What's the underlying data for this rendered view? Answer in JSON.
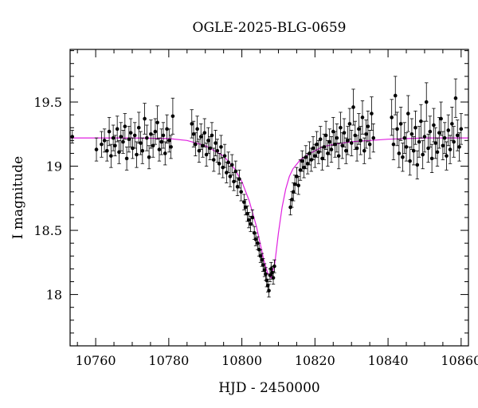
{
  "chart_data": {
    "type": "scatter",
    "title": "OGLE-2025-BLG-0659",
    "xlabel": "HJD - 2450000",
    "ylabel": "I magnitude",
    "xlim": [
      10753,
      10862
    ],
    "ylim": [
      19.91,
      17.6
    ],
    "y_inverted": true,
    "grid": false,
    "legend": "none",
    "xticks": [
      10760,
      10780,
      10800,
      10820,
      10840,
      10860
    ],
    "yticks": [
      18,
      18.5,
      19,
      19.5
    ],
    "colors": {
      "points": "#000000",
      "model": "#e020e0",
      "frame": "#000000"
    },
    "model": {
      "name": "",
      "x": [
        10753,
        10760,
        10770,
        10780,
        10785,
        10790,
        10795,
        10798,
        10800,
        10802,
        10804,
        10805,
        10806,
        10807,
        10808,
        10809,
        10810,
        10811,
        10812,
        10813,
        10814,
        10816,
        10818,
        10820,
        10822,
        10825,
        10830,
        10835,
        10840,
        10850,
        10862
      ],
      "y": [
        19.22,
        19.22,
        19.22,
        19.215,
        19.2,
        19.16,
        19.08,
        18.98,
        18.88,
        18.73,
        18.53,
        18.4,
        18.27,
        18.17,
        18.13,
        18.24,
        18.48,
        18.68,
        18.82,
        18.92,
        18.98,
        19.05,
        19.09,
        19.12,
        19.15,
        19.17,
        19.19,
        19.2,
        19.21,
        19.22,
        19.22
      ]
    },
    "series": [
      {
        "name": "",
        "points": [
          [
            10753.6,
            19.23,
            0.05
          ],
          [
            10760.2,
            19.13,
            0.09
          ],
          [
            10761.6,
            19.17,
            0.1
          ],
          [
            10762.4,
            19.2,
            0.09
          ],
          [
            10763.1,
            19.12,
            0.08
          ],
          [
            10763.7,
            19.27,
            0.11
          ],
          [
            10764.2,
            19.08,
            0.09
          ],
          [
            10764.8,
            19.22,
            0.1
          ],
          [
            10765.3,
            19.16,
            0.08
          ],
          [
            10765.9,
            19.29,
            0.1
          ],
          [
            10766.4,
            19.11,
            0.09
          ],
          [
            10766.9,
            19.23,
            0.11
          ],
          [
            10767.5,
            19.19,
            0.09
          ],
          [
            10768.0,
            19.31,
            0.1
          ],
          [
            10768.5,
            19.06,
            0.09
          ],
          [
            10769.1,
            19.21,
            0.1
          ],
          [
            10769.6,
            19.26,
            0.11
          ],
          [
            10770.1,
            19.14,
            0.08
          ],
          [
            10770.7,
            19.24,
            0.1
          ],
          [
            10771.2,
            19.09,
            0.1
          ],
          [
            10771.8,
            19.3,
            0.12
          ],
          [
            10772.3,
            19.18,
            0.09
          ],
          [
            10772.8,
            19.12,
            0.1
          ],
          [
            10773.4,
            19.37,
            0.12
          ],
          [
            10774.0,
            19.22,
            0.1
          ],
          [
            10774.6,
            19.07,
            0.09
          ],
          [
            10775.1,
            19.25,
            0.11
          ],
          [
            10775.7,
            19.16,
            0.09
          ],
          [
            10776.3,
            19.27,
            0.1
          ],
          [
            10776.9,
            19.34,
            0.13
          ],
          [
            10777.4,
            19.13,
            0.09
          ],
          [
            10778.0,
            19.19,
            0.1
          ],
          [
            10778.5,
            19.24,
            0.1
          ],
          [
            10779.0,
            19.1,
            0.09
          ],
          [
            10779.5,
            19.29,
            0.11
          ],
          [
            10780.1,
            19.2,
            0.09
          ],
          [
            10780.6,
            19.15,
            0.09
          ],
          [
            10781.1,
            19.39,
            0.14
          ],
          [
            10786.3,
            19.33,
            0.11
          ],
          [
            10786.8,
            19.25,
            0.1
          ],
          [
            10787.3,
            19.17,
            0.09
          ],
          [
            10787.8,
            19.29,
            0.1
          ],
          [
            10788.3,
            19.12,
            0.09
          ],
          [
            10788.8,
            19.23,
            0.1
          ],
          [
            10789.3,
            19.16,
            0.09
          ],
          [
            10789.8,
            19.26,
            0.11
          ],
          [
            10790.3,
            19.09,
            0.09
          ],
          [
            10790.8,
            19.2,
            0.1
          ],
          [
            10791.3,
            19.14,
            0.09
          ],
          [
            10791.8,
            19.24,
            0.1
          ],
          [
            10792.3,
            19.05,
            0.09
          ],
          [
            10792.8,
            19.18,
            0.1
          ],
          [
            10793.3,
            19.12,
            0.09
          ],
          [
            10793.8,
            19.02,
            0.08
          ],
          [
            10794.3,
            19.15,
            0.09
          ],
          [
            10794.8,
            18.99,
            0.08
          ],
          [
            10795.3,
            19.08,
            0.09
          ],
          [
            10795.8,
            18.95,
            0.08
          ],
          [
            10796.3,
            19.03,
            0.08
          ],
          [
            10796.8,
            18.92,
            0.08
          ],
          [
            10797.3,
            19.01,
            0.08
          ],
          [
            10797.8,
            18.88,
            0.07
          ],
          [
            10798.3,
            18.96,
            0.08
          ],
          [
            10798.8,
            18.84,
            0.07
          ],
          [
            10799.3,
            18.9,
            0.07
          ],
          [
            10799.8,
            18.8,
            0.07
          ],
          [
            10800.6,
            18.72,
            0.06
          ],
          [
            10801.0,
            18.68,
            0.06
          ],
          [
            10801.5,
            18.63,
            0.06
          ],
          [
            10801.9,
            18.58,
            0.06
          ],
          [
            10802.4,
            18.55,
            0.06
          ],
          [
            10802.9,
            18.6,
            0.06
          ],
          [
            10803.4,
            18.48,
            0.05
          ],
          [
            10803.8,
            18.43,
            0.05
          ],
          [
            10804.3,
            18.4,
            0.05
          ],
          [
            10804.7,
            18.35,
            0.05
          ],
          [
            10805.1,
            18.3,
            0.05
          ],
          [
            10805.5,
            18.27,
            0.05
          ],
          [
            10805.8,
            18.23,
            0.05
          ],
          [
            10806.2,
            18.19,
            0.05
          ],
          [
            10806.5,
            18.16,
            0.05
          ],
          [
            10806.8,
            18.11,
            0.05
          ],
          [
            10807.1,
            18.07,
            0.05
          ],
          [
            10807.4,
            18.03,
            0.05
          ],
          [
            10807.7,
            18.15,
            0.05
          ],
          [
            10808.0,
            18.2,
            0.05
          ],
          [
            10808.3,
            18.17,
            0.05
          ],
          [
            10808.6,
            18.13,
            0.05
          ],
          [
            10808.9,
            18.22,
            0.05
          ],
          [
            10813.3,
            18.68,
            0.06
          ],
          [
            10813.7,
            18.74,
            0.06
          ],
          [
            10814.1,
            18.8,
            0.07
          ],
          [
            10814.5,
            18.86,
            0.07
          ],
          [
            10815.0,
            18.92,
            0.07
          ],
          [
            10815.5,
            18.85,
            0.07
          ],
          [
            10816.0,
            18.97,
            0.08
          ],
          [
            10816.5,
            19.04,
            0.08
          ],
          [
            10817.0,
            18.99,
            0.08
          ],
          [
            10817.5,
            19.07,
            0.09
          ],
          [
            10818.0,
            19.02,
            0.08
          ],
          [
            10818.5,
            19.1,
            0.09
          ],
          [
            10819.0,
            19.05,
            0.09
          ],
          [
            10819.5,
            19.14,
            0.09
          ],
          [
            10820.0,
            19.08,
            0.09
          ],
          [
            10820.5,
            19.17,
            0.1
          ],
          [
            10821.0,
            19.11,
            0.09
          ],
          [
            10821.5,
            19.21,
            0.1
          ],
          [
            10822.0,
            19.06,
            0.09
          ],
          [
            10822.5,
            19.15,
            0.1
          ],
          [
            10823.0,
            19.24,
            0.11
          ],
          [
            10823.5,
            19.1,
            0.1
          ],
          [
            10824.0,
            19.19,
            0.1
          ],
          [
            10824.5,
            19.13,
            0.1
          ],
          [
            10825.0,
            19.27,
            0.11
          ],
          [
            10825.5,
            19.17,
            0.1
          ],
          [
            10826.0,
            19.22,
            0.11
          ],
          [
            10826.5,
            19.08,
            0.1
          ],
          [
            10827.0,
            19.3,
            0.12
          ],
          [
            10827.5,
            19.16,
            0.1
          ],
          [
            10828.0,
            19.26,
            0.11
          ],
          [
            10828.5,
            19.12,
            0.1
          ],
          [
            10829.0,
            19.2,
            0.11
          ],
          [
            10829.5,
            19.33,
            0.12
          ],
          [
            10830.0,
            19.18,
            0.1
          ],
          [
            10830.5,
            19.46,
            0.14
          ],
          [
            10831.0,
            19.24,
            0.11
          ],
          [
            10831.5,
            19.14,
            0.1
          ],
          [
            10832.0,
            19.29,
            0.12
          ],
          [
            10832.5,
            19.2,
            0.11
          ],
          [
            10833.0,
            19.38,
            0.13
          ],
          [
            10833.5,
            19.12,
            0.1
          ],
          [
            10834.0,
            19.25,
            0.11
          ],
          [
            10834.5,
            19.31,
            0.12
          ],
          [
            10835.0,
            19.17,
            0.11
          ],
          [
            10835.5,
            19.41,
            0.13
          ],
          [
            10836.0,
            19.22,
            0.11
          ],
          [
            10841.0,
            19.38,
            0.14
          ],
          [
            10841.5,
            19.17,
            0.12
          ],
          [
            10842.0,
            19.55,
            0.15
          ],
          [
            10842.5,
            19.29,
            0.13
          ],
          [
            10843.0,
            19.1,
            0.11
          ],
          [
            10843.5,
            19.33,
            0.13
          ],
          [
            10844.0,
            19.07,
            0.11
          ],
          [
            10844.5,
            19.22,
            0.12
          ],
          [
            10845.0,
            19.15,
            0.11
          ],
          [
            10845.5,
            19.41,
            0.14
          ],
          [
            10846.0,
            19.04,
            0.11
          ],
          [
            10846.5,
            19.25,
            0.12
          ],
          [
            10847.0,
            19.12,
            0.11
          ],
          [
            10847.5,
            19.3,
            0.13
          ],
          [
            10848.0,
            19.01,
            0.11
          ],
          [
            10848.5,
            19.19,
            0.12
          ],
          [
            10849.0,
            19.35,
            0.13
          ],
          [
            10849.5,
            19.09,
            0.11
          ],
          [
            10850.0,
            19.23,
            0.12
          ],
          [
            10850.5,
            19.5,
            0.15
          ],
          [
            10851.0,
            19.14,
            0.11
          ],
          [
            10851.5,
            19.27,
            0.12
          ],
          [
            10852.0,
            19.06,
            0.11
          ],
          [
            10852.5,
            19.32,
            0.13
          ],
          [
            10853.0,
            19.18,
            0.12
          ],
          [
            10853.5,
            19.11,
            0.11
          ],
          [
            10854.0,
            19.26,
            0.12
          ],
          [
            10854.5,
            19.37,
            0.13
          ],
          [
            10855.0,
            19.16,
            0.11
          ],
          [
            10855.5,
            19.22,
            0.12
          ],
          [
            10856.0,
            19.08,
            0.11
          ],
          [
            10856.5,
            19.28,
            0.12
          ],
          [
            10857.0,
            19.13,
            0.11
          ],
          [
            10857.5,
            19.33,
            0.13
          ],
          [
            10858.0,
            19.19,
            0.12
          ],
          [
            10858.5,
            19.53,
            0.15
          ],
          [
            10859.0,
            19.24,
            0.12
          ],
          [
            10859.5,
            19.15,
            0.11
          ],
          [
            10860.0,
            19.29,
            0.12
          ]
        ]
      }
    ]
  }
}
